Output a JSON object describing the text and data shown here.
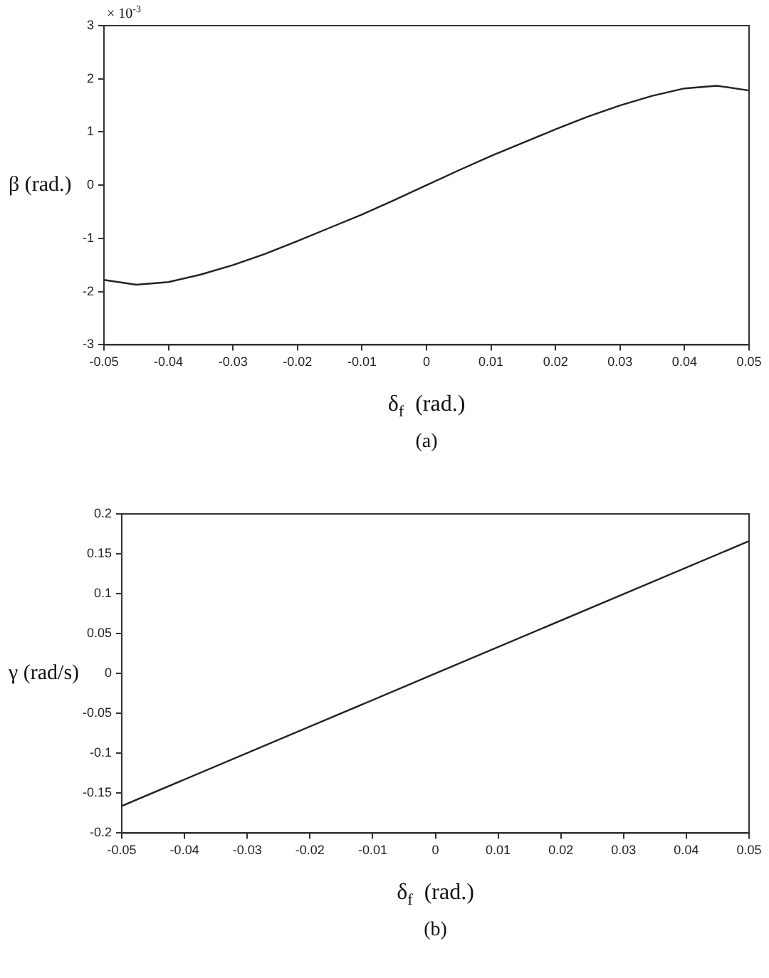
{
  "chart_data": [
    {
      "type": "line",
      "xlabel": "δ$_{f}$  (rad.)",
      "ylabel": "β (rad.)",
      "annotations": [
        "× 10$^{-3}$",
        "(a)"
      ],
      "x": [
        -0.05,
        -0.045,
        -0.04,
        -0.035,
        -0.03,
        -0.025,
        -0.02,
        -0.015,
        -0.01,
        -0.005,
        0,
        0.005,
        0.01,
        0.015,
        0.02,
        0.025,
        0.03,
        0.035,
        0.04,
        0.045,
        0.05
      ],
      "series": [
        {
          "color": "#222222",
          "values": [
            -1.78,
            -1.87,
            -1.82,
            -1.68,
            -1.5,
            -1.29,
            -1.05,
            -0.8,
            -0.55,
            -0.28,
            0,
            0.28,
            0.55,
            0.8,
            1.05,
            1.29,
            1.5,
            1.68,
            1.82,
            1.87,
            1.78
          ]
        }
      ],
      "xlim": [
        -0.05,
        0.05
      ],
      "xticks": [
        -0.05,
        -0.04,
        -0.03,
        -0.02,
        -0.01,
        0,
        0.01,
        0.02,
        0.03,
        0.04,
        0.05
      ],
      "ylim": [
        -3,
        3
      ],
      "yticks": [
        -3,
        -2,
        -1,
        0,
        1,
        2,
        3
      ],
      "grid": false,
      "legend": false,
      "marker": "none",
      "line_style": "solid"
    },
    {
      "type": "line",
      "xlabel": "δ$_{f}$  (rad.)",
      "ylabel": "γ (rad/s)",
      "annotations": [
        "(b)"
      ],
      "x": [
        -0.05,
        0,
        0.05
      ],
      "series": [
        {
          "color": "#222222",
          "values": [
            -0.166,
            0,
            0.166
          ]
        }
      ],
      "xlim": [
        -0.05,
        0.05
      ],
      "xticks": [
        -0.05,
        -0.04,
        -0.03,
        -0.02,
        -0.01,
        0,
        0.01,
        0.02,
        0.03,
        0.04,
        0.05
      ],
      "ylim": [
        -0.2,
        0.2
      ],
      "yticks": [
        -0.2,
        -0.15,
        -0.1,
        -0.05,
        0,
        0.05,
        0.1,
        0.15,
        0.2
      ],
      "grid": false,
      "legend": false,
      "marker": "none",
      "line_style": "solid"
    }
  ]
}
